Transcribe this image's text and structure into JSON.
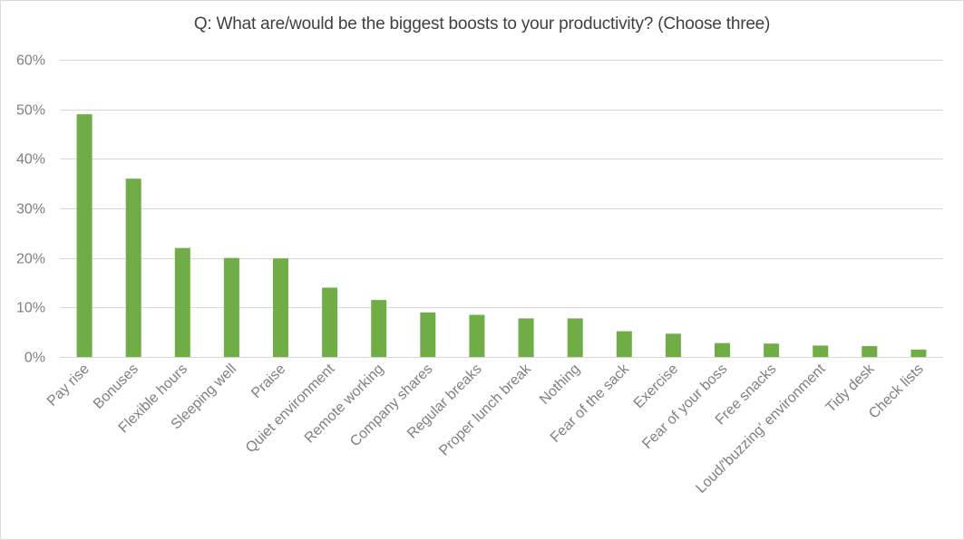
{
  "chart_data": {
    "type": "bar",
    "title": "Q: What are/would be the biggest boosts to your productivity? (Choose three)",
    "xlabel": "",
    "ylabel": "",
    "ylim": [
      0,
      0.6
    ],
    "yticks": [
      0,
      0.1,
      0.2,
      0.3,
      0.4,
      0.5,
      0.6
    ],
    "ytick_labels": [
      "0%",
      "10%",
      "20%",
      "30%",
      "40%",
      "50%",
      "60%"
    ],
    "grid": true,
    "bar_color": "#70ad47",
    "categories": [
      "Pay rise",
      "Bonuses",
      "Flexible hours",
      "Sleeping well",
      "Praise",
      "Quiet environment",
      "Remote working",
      "Company shares",
      "Regular breaks",
      "Proper lunch break",
      "Nothing",
      "Fear of the sack",
      "Exercise",
      "Fear of your boss",
      "Free snacks",
      "Loud/'buzzing' environment",
      "Tidy desk",
      "Check lists"
    ],
    "values": [
      0.49,
      0.36,
      0.22,
      0.2,
      0.199,
      0.14,
      0.115,
      0.09,
      0.085,
      0.078,
      0.078,
      0.052,
      0.047,
      0.028,
      0.027,
      0.023,
      0.022,
      0.015
    ]
  }
}
